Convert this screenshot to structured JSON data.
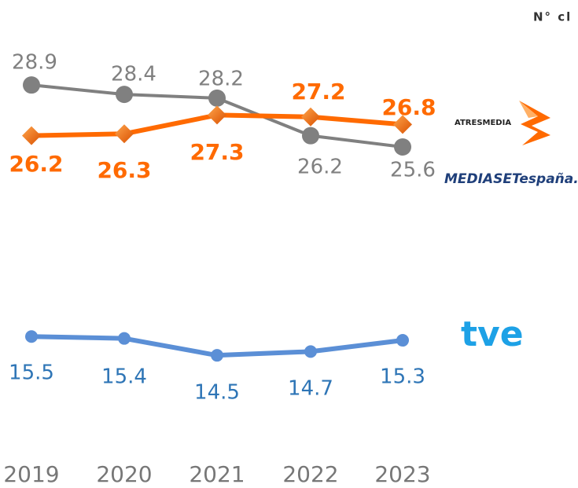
{
  "chart_data": {
    "type": "line",
    "title": "N° cl",
    "categories": [
      "2019",
      "2020",
      "2021",
      "2022",
      "2023"
    ],
    "ylim": [
      13,
      31
    ],
    "series": [
      {
        "name": "MEDIASETespaña.",
        "color": "#808080",
        "values": [
          28.9,
          28.4,
          28.2,
          26.2,
          25.6
        ]
      },
      {
        "name": "ATRESMEDIA",
        "color": "#ff6a00",
        "values": [
          26.2,
          26.3,
          27.3,
          27.2,
          26.8
        ]
      },
      {
        "name": "tve",
        "color": "#5b8fd6",
        "values": [
          15.5,
          15.4,
          14.5,
          14.7,
          15.3
        ]
      }
    ]
  }
}
